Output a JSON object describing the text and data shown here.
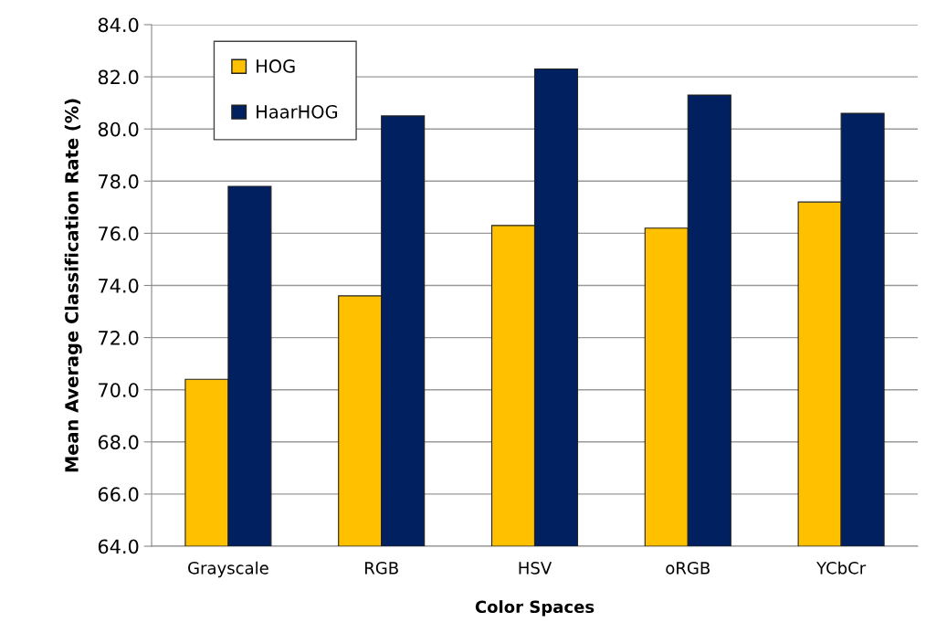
{
  "chart_data": {
    "type": "bar",
    "xlabel": "Color Spaces",
    "ylabel": "Mean Average Classification Rate (%)",
    "categories": [
      "Grayscale",
      "RGB",
      "HSV",
      "oRGB",
      "YCbCr"
    ],
    "series": [
      {
        "name": "HOG",
        "color": "#ffc000",
        "values": [
          70.4,
          73.6,
          76.3,
          76.2,
          77.2
        ]
      },
      {
        "name": "HaarHOG",
        "color": "#002060",
        "values": [
          77.8,
          80.5,
          82.3,
          81.3,
          80.6
        ]
      }
    ],
    "ylim": [
      64.0,
      84.0
    ],
    "yticks": [
      {
        "value": 64,
        "label": "64.0"
      },
      {
        "value": 66,
        "label": "66.0"
      },
      {
        "value": 68,
        "label": "68.0"
      },
      {
        "value": 70,
        "label": "70.0"
      },
      {
        "value": 72,
        "label": "72.0"
      },
      {
        "value": 74,
        "label": "74.0"
      },
      {
        "value": 76,
        "label": "76.0"
      },
      {
        "value": 78,
        "label": "78.0"
      },
      {
        "value": 80,
        "label": "80.0"
      },
      {
        "value": 82,
        "label": "82.0"
      },
      {
        "value": 84,
        "label": "84.0"
      }
    ],
    "grid": "y",
    "legend": "top left"
  }
}
